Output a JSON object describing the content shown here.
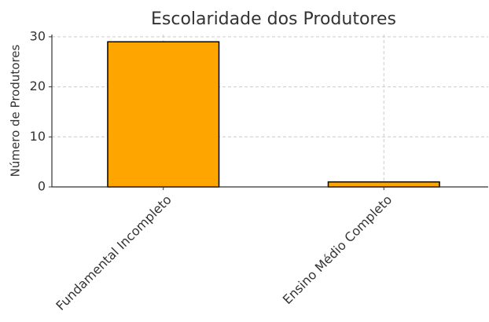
{
  "chart_data": {
    "type": "bar",
    "title": "Escolaridade dos Produtores",
    "ylabel": "Número de Produtores",
    "categories": [
      "Fundamental Incompleto",
      "Ensino Médio Completo"
    ],
    "values": [
      29,
      1
    ],
    "color": "#ffa500",
    "ylim": [
      0,
      30.45
    ],
    "yticks": [
      0,
      10,
      20,
      30
    ],
    "grid": true
  }
}
